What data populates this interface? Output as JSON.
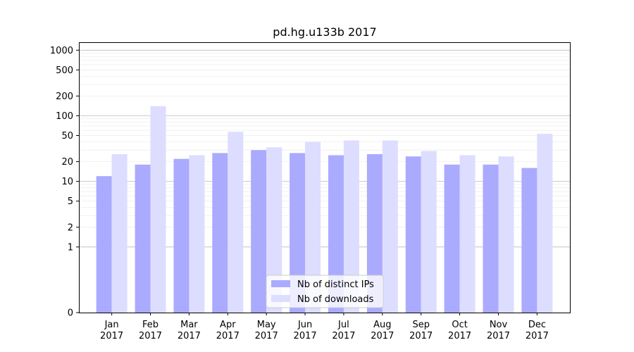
{
  "chart_data": {
    "type": "bar",
    "title": "pd.hg.u133b 2017",
    "xlabel": "",
    "ylabel": "",
    "y_scale": "symlog",
    "y_ticks": [
      0,
      1,
      2,
      5,
      10,
      20,
      50,
      100,
      200,
      500,
      1000
    ],
    "y_tick_labels": [
      "0",
      "1",
      "2",
      "5",
      "10",
      "20",
      "50",
      "100",
      "200",
      "500",
      "1000"
    ],
    "categories": [
      "Jan\n2017",
      "Feb\n2017",
      "Mar\n2017",
      "Apr\n2017",
      "May\n2017",
      "Jun\n2017",
      "Jul\n2017",
      "Aug\n2017",
      "Sep\n2017",
      "Oct\n2017",
      "Nov\n2017",
      "Dec\n2017"
    ],
    "category_lines": [
      [
        "Jan",
        "2017"
      ],
      [
        "Feb",
        "2017"
      ],
      [
        "Mar",
        "2017"
      ],
      [
        "Apr",
        "2017"
      ],
      [
        "May",
        "2017"
      ],
      [
        "Jun",
        "2017"
      ],
      [
        "Jul",
        "2017"
      ],
      [
        "Aug",
        "2017"
      ],
      [
        "Sep",
        "2017"
      ],
      [
        "Oct",
        "2017"
      ],
      [
        "Nov",
        "2017"
      ],
      [
        "Dec",
        "2017"
      ]
    ],
    "series": [
      {
        "name": "Nb of distinct IPs",
        "color": "#aaaaff",
        "values": [
          12,
          18,
          22,
          27,
          30,
          27,
          25,
          26,
          24,
          18,
          18,
          16
        ]
      },
      {
        "name": "Nb of downloads",
        "color": "#ddddff",
        "values": [
          26,
          140,
          25,
          57,
          33,
          40,
          42,
          42,
          29,
          25,
          24,
          53
        ]
      }
    ],
    "grid": true,
    "legend_position": "bottom-center"
  }
}
